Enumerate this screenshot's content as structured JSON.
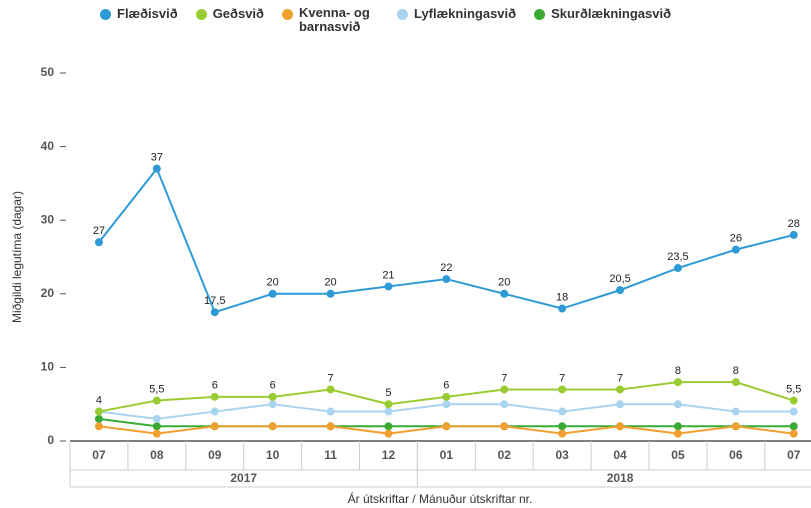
{
  "chart_data": {
    "type": "line",
    "ylabel": "Miðgildi legutíma (dagar)",
    "xlabel": "Ár útskriftar / Mánuður útskriftar nr.",
    "categories": [
      "07",
      "08",
      "09",
      "10",
      "11",
      "12",
      "01",
      "02",
      "03",
      "04",
      "05",
      "06",
      "07"
    ],
    "years": [
      {
        "name": "2017",
        "span": 6
      },
      {
        "name": "2018",
        "span": 7
      }
    ],
    "ylim": [
      0,
      50
    ],
    "yticks": [
      0,
      10,
      20,
      30,
      40,
      50
    ],
    "grid": false,
    "legend": "top",
    "series": [
      {
        "name": "Flæðisvið",
        "color": "#2d9ad6",
        "values": [
          27,
          37,
          17.5,
          20,
          20,
          21,
          22,
          20,
          18,
          20.5,
          23.5,
          26,
          28
        ],
        "value_labels": [
          "27",
          "37",
          "17,5",
          "20",
          "20",
          "21",
          "22",
          "20",
          "18",
          "20,5",
          "23,5",
          "26",
          "28"
        ]
      },
      {
        "name": "Geðsvið",
        "color": "#99cc33",
        "values": [
          4,
          5.5,
          6,
          6,
          7,
          5,
          6,
          7,
          7,
          7,
          8,
          8,
          5.5
        ],
        "value_labels": [
          "4",
          "5,5",
          "6",
          "6",
          "7",
          "5",
          "6",
          "7",
          "7",
          "7",
          "8",
          "8",
          "5,5"
        ]
      },
      {
        "name": "Kvenna- og barnasvið",
        "color": "#f0a030",
        "values": [
          2,
          1,
          2,
          2,
          2,
          1,
          2,
          2,
          1,
          2,
          1,
          2,
          1
        ]
      },
      {
        "name": "Lyflækningasvið",
        "color": "#a8d4f0",
        "values": [
          4,
          3,
          4,
          5,
          4,
          4,
          5,
          5,
          4,
          5,
          5,
          4,
          4
        ]
      },
      {
        "name": "Skurðlækningasvið",
        "color": "#3aaa35",
        "values": [
          3,
          2,
          2,
          2,
          2,
          2,
          2,
          2,
          2,
          2,
          2,
          2,
          2
        ]
      }
    ]
  }
}
